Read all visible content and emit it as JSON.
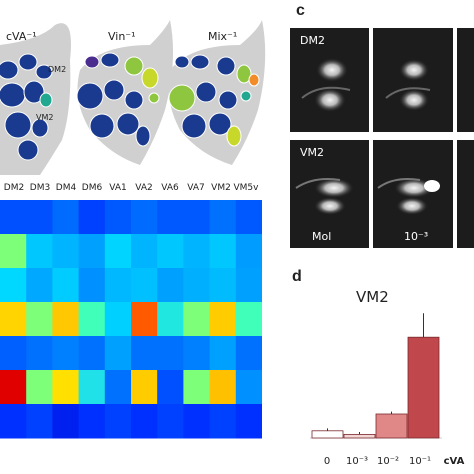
{
  "maps": [
    {
      "title": "cVA⁻¹",
      "labels": [
        "DM2",
        "VM2"
      ]
    },
    {
      "title": "Vin⁻¹",
      "labels": []
    },
    {
      "title": "Mix⁻¹",
      "labels": []
    }
  ],
  "heatmap": {
    "columns": [
      "DM2",
      "DM3",
      "DM4",
      "DM6",
      "VA1",
      "VA2",
      "VA6",
      "VA7",
      "VM2",
      "VM5v"
    ],
    "rows": [
      [
        "#0050ff",
        "#0050ff",
        "#006cff",
        "#0040ff",
        "#0058ff",
        "#006cff",
        "#0058ff",
        "#0058ff",
        "#0070ff",
        "#0058ff"
      ],
      [
        "#7dff7a",
        "#00c8ff",
        "#00b4ff",
        "#00a0ff",
        "#00d4ff",
        "#00b4ff",
        "#00c8ff",
        "#00b4ff",
        "#00c8ff",
        "#009cff"
      ],
      [
        "#00d8ff",
        "#00a8ff",
        "#00ccff",
        "#0090ff",
        "#00b8ff",
        "#00c0ff",
        "#00a0ff",
        "#00b0ff",
        "#00bcff",
        "#00a0ff"
      ],
      [
        "#ffd400",
        "#7dff7a",
        "#ffc800",
        "#40ffb8",
        "#00d0ff",
        "#ff5a00",
        "#20e8e0",
        "#7dff7a",
        "#ffcc00",
        "#40ffb8"
      ],
      [
        "#0060ff",
        "#0070ff",
        "#0080ff",
        "#0070ff",
        "#00a0ff",
        "#0070ff",
        "#0070ff",
        "#0080ff",
        "#00a0ff",
        "#0070ff"
      ],
      [
        "#e00000",
        "#7dff7a",
        "#ffe000",
        "#20e0e8",
        "#0070ff",
        "#ffcc00",
        "#0050ff",
        "#7dff7a",
        "#ffc000",
        "#0090ff"
      ],
      [
        "#0030ff",
        "#0040ff",
        "#0020f0",
        "#0030ff",
        "#0040ff",
        "#0030ff",
        "#0040ff",
        "#0030ff",
        "#0040ff",
        "#0030ff"
      ]
    ]
  },
  "panel_c": {
    "letter": "c",
    "rows": [
      {
        "label": "DM2"
      },
      {
        "label": "VM2",
        "bottom_labels": [
          "Mol",
          "10⁻³"
        ]
      }
    ]
  },
  "panel_d": {
    "letter": "d",
    "chart_title": "VM2",
    "axis_name": "cVA"
  },
  "chart_data": {
    "type": "bar",
    "title": "VM2",
    "categories": [
      "0",
      "10⁻³",
      "10⁻²",
      "10⁻¹"
    ],
    "values": [
      0.3,
      0.15,
      1.0,
      4.2
    ],
    "errors": [
      0.1,
      0.1,
      0.1,
      1.0
    ],
    "colors": [
      "#ffffff",
      "#f2d6d6",
      "#e08888",
      "#c0474c"
    ],
    "xlabel": "cVA",
    "ylim": [
      -0.5,
      5.5
    ]
  }
}
